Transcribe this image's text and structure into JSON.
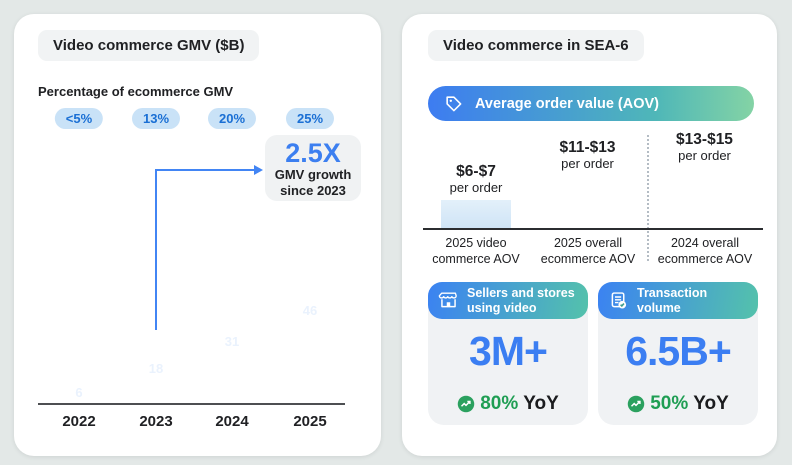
{
  "left_panel": {
    "title": "Video commerce GMV ($B)",
    "subtitle": "Percentage of ecommerce GMV",
    "badges": [
      "<5%",
      "13%",
      "20%",
      "25%"
    ],
    "callout": {
      "multiplier": "2.5X",
      "line1": "GMV growth",
      "line2": "since 2023"
    }
  },
  "right_panel": {
    "title": "Video commerce in SEA-6",
    "aov_banner": {
      "label": "Average order value (AOV)",
      "icon": "tag-icon"
    },
    "aov_bars": [
      {
        "value": "$6-$7",
        "unit": "per order",
        "caption1": "2025 video",
        "caption2": "commerce AOV"
      },
      {
        "value": "$11-$13",
        "unit": "per order",
        "caption1": "2025 overall",
        "caption2": "ecommerce AOV"
      },
      {
        "value": "$13-$15",
        "unit": "per order",
        "caption1": "2024 overall",
        "caption2": "ecommerce AOV"
      }
    ],
    "stat_cards": [
      {
        "icon": "storefront-icon",
        "header_line1": "Sellers and stores",
        "header_line2": "using video",
        "value": "3M+",
        "growth_pct": "80%",
        "growth_suffix": "YoY"
      },
      {
        "icon": "receipt-check-icon",
        "header_line1": "Transaction",
        "header_line2": "volume",
        "value": "6.5B+",
        "growth_pct": "50%",
        "growth_suffix": "YoY"
      }
    ]
  },
  "colors": {
    "accent_blue": "#4285f4",
    "accent_teal": "#2baaa0",
    "accent_green": "#1f9e53",
    "badge_bg": "#c9e2f7",
    "badge_text": "#1a6fd4",
    "pale_bar": "#d8e9f8",
    "panel_bg": "#ffffff",
    "page_bg": "#e3e8e7",
    "pill_bg": "#f1f3f4"
  },
  "chart_data": [
    {
      "type": "bar",
      "title": "Video commerce GMV ($B)",
      "categories": [
        "2022",
        "2023",
        "2024",
        "2025"
      ],
      "values": [
        6,
        18,
        31,
        46
      ],
      "ylim": [
        0,
        50
      ],
      "grid": false,
      "annotations": [
        "Percentage of ecommerce GMV per year: <5% (2022), 13% (2023), 20% (2024), 25% (2025)",
        "2.5X GMV growth since 2023 (arrow from 2023 bar)"
      ]
    },
    {
      "type": "bar",
      "title": "Average order value (AOV)",
      "categories": [
        "2025 video commerce AOV",
        "2025 overall ecommerce AOV",
        "2024 overall ecommerce AOV"
      ],
      "values": [
        6.5,
        12,
        14
      ],
      "value_labels": [
        "$6-$7 per order",
        "$11-$13 per order",
        "$13-$15 per order"
      ],
      "ylim": [
        0,
        15
      ],
      "grid": false,
      "annotations": [
        "dotted divider separates 2024 bar"
      ]
    },
    {
      "type": "table",
      "title": "Video commerce in SEA-6 stats",
      "categories": [
        "Sellers and stores using video",
        "Transaction volume"
      ],
      "values": [
        "3M+",
        "6.5B+"
      ],
      "yoy_growth": [
        "80% YoY",
        "50% YoY"
      ]
    }
  ]
}
